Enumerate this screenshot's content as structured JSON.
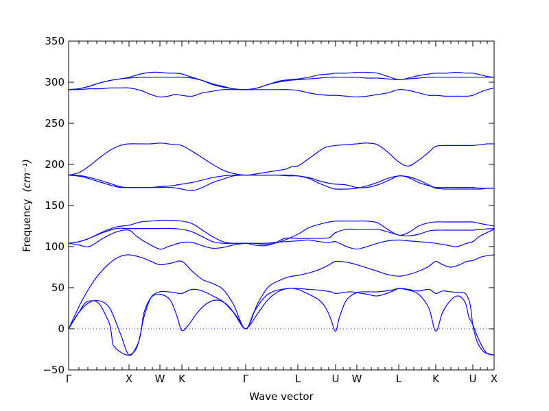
{
  "chart_data": {
    "type": "line",
    "xlabel": "Wave vector",
    "ylabel": "Frequency",
    "ylabel_unit": "(cm⁻¹)",
    "ylim": [
      -50,
      350
    ],
    "yticks": [
      -50,
      0,
      50,
      100,
      150,
      200,
      250,
      300,
      350
    ],
    "ytick_labels": [
      "−50",
      "0",
      "50",
      "100",
      "150",
      "200",
      "250",
      "300",
      "350"
    ],
    "xlim": [
      0,
      62
    ],
    "xticks": [
      {
        "x": 0,
        "label": "Γ"
      },
      {
        "x": 8.8,
        "label": "X"
      },
      {
        "x": 13.3,
        "label": "W"
      },
      {
        "x": 16.5,
        "label": "K"
      },
      {
        "x": 25.8,
        "label": "Γ"
      },
      {
        "x": 33.4,
        "label": "L"
      },
      {
        "x": 38.9,
        "label": "U"
      },
      {
        "x": 42.0,
        "label": "W"
      },
      {
        "x": 48.1,
        "label": "L"
      },
      {
        "x": 53.5,
        "label": "K"
      },
      {
        "x": 58.9,
        "label": "U"
      },
      {
        "x": 62.0,
        "label": "X"
      }
    ],
    "minor_xticks": [
      1.5,
      2.8,
      4.1,
      5.4,
      6.6,
      7.8,
      9.9,
      11.1,
      12.2,
      14.3,
      15.4,
      17.5,
      18.7,
      19.9,
      21.1,
      22.3,
      23.5,
      24.7,
      26.9,
      28.0,
      29.1,
      30.2,
      31.3,
      32.4,
      34.5,
      35.6,
      36.8,
      37.9,
      40.0,
      41.0,
      43.0,
      44.1,
      45.1,
      46.1,
      47.1,
      49.2,
      50.3,
      51.4,
      52.5,
      54.6,
      55.7,
      56.8,
      57.9,
      60.0,
      61.0
    ],
    "zero_line": {
      "y": 0,
      "style": "dotted",
      "color": "#0000ff"
    },
    "line_color": "#0000ff",
    "grid": false,
    "series": [
      {
        "x": [
          0,
          1.5,
          2.5,
          3.7,
          4.5,
          5.2,
          6.0,
          6.3,
          6.5,
          7.5,
          8.8,
          9.8,
          10.4,
          10.7,
          11.0,
          12.0,
          13.3,
          14.8,
          15.8,
          16.5,
          17.5,
          18.8,
          20.0,
          21.5,
          23.0,
          24.5,
          25.8,
          27.5,
          29.0,
          30.5,
          32.0,
          33.4,
          35.0,
          36.5,
          37.5,
          38.2,
          38.9,
          39.5,
          40.5,
          42.0,
          43.5,
          45.0,
          47.0,
          48.1,
          49.5,
          51.0,
          52.5,
          53.5,
          54.5,
          55.7,
          56.8,
          57.8,
          58.3,
          58.9,
          59.5,
          60.3,
          61.0,
          62.0
        ],
        "y": [
          0,
          20,
          32,
          34,
          30,
          20,
          5,
          -10,
          -20,
          -28,
          -32,
          -25,
          -10,
          5,
          20,
          38,
          42,
          35,
          15,
          -2,
          5,
          20,
          30,
          35,
          30,
          15,
          0,
          18,
          35,
          45,
          49,
          48,
          42,
          35,
          25,
          12,
          -3,
          15,
          35,
          44,
          45,
          45,
          47,
          49,
          47,
          42,
          25,
          -3,
          20,
          35,
          40,
          32,
          15,
          5,
          -8,
          -22,
          -30,
          -32
        ]
      },
      {
        "x": [
          0,
          1.5,
          3.0,
          4.5,
          6.0,
          7.5,
          8.8,
          10.0,
          10.5,
          11.0,
          12.0,
          13.3,
          14.5,
          15.5,
          16.5,
          18.0,
          19.5,
          21.0,
          22.5,
          24.0,
          25.8,
          27.0,
          28.5,
          30.0,
          32.0,
          33.4,
          35.0,
          36.5,
          37.5,
          38.2,
          38.9,
          40.0,
          41.0,
          42.0,
          43.5,
          45.0,
          47.0,
          48.1,
          49.5,
          51.0,
          52.5,
          53.5,
          54.5,
          55.7,
          56.8,
          57.8,
          58.5,
          58.9,
          59.5,
          60.5,
          62.0
        ],
        "y": [
          0,
          20,
          32,
          34,
          25,
          -5,
          -32,
          -20,
          -5,
          15,
          38,
          45,
          45,
          44,
          43,
          48,
          46,
          40,
          33,
          20,
          0,
          20,
          38,
          46,
          49,
          49,
          48,
          47,
          46,
          45,
          43,
          44,
          45,
          44,
          42,
          40,
          45,
          49,
          48,
          46,
          48,
          43,
          46,
          45,
          44,
          43,
          30,
          5,
          -15,
          -28,
          -32
        ]
      },
      {
        "x": [
          0,
          2.0,
          4.0,
          6.0,
          7.5,
          8.8,
          10.5,
          12.0,
          13.3,
          15.0,
          16.5,
          18.0,
          19.5,
          21.0,
          22.5,
          24.0,
          25.8,
          27.5,
          29.0,
          30.5,
          32.0,
          33.4,
          35.0,
          36.5,
          38.0,
          38.9,
          40.5,
          42.0,
          43.5,
          45.0,
          46.5,
          48.1,
          49.5,
          51.0,
          52.5,
          53.5,
          54.5,
          55.7,
          57.0,
          58.0,
          58.9,
          60.0,
          61.0,
          62.0
        ],
        "y": [
          0,
          35,
          62,
          80,
          88,
          90,
          87,
          82,
          78,
          80,
          82,
          70,
          60,
          55,
          48,
          30,
          0,
          30,
          50,
          58,
          63,
          65,
          68,
          72,
          78,
          82,
          81,
          78,
          74,
          70,
          66,
          64,
          66,
          70,
          76,
          82,
          78,
          75,
          78,
          82,
          83,
          87,
          89,
          90
        ]
      },
      {
        "x": [
          0,
          1.5,
          3.0,
          5.0,
          7.0,
          8.8,
          10.0,
          11.5,
          13.3,
          14.5,
          16.5,
          18.0,
          19.5,
          21.0,
          22.5,
          24.0,
          25.8,
          27.0,
          28.5,
          30.0,
          31.5,
          33.4,
          35.0,
          36.5,
          38.0,
          38.9,
          40.5,
          42.0,
          43.5,
          45.0,
          46.5,
          48.1,
          49.5,
          51.0,
          52.5,
          53.5,
          55.0,
          56.5,
          58.0,
          58.9,
          60.0,
          62.0
        ],
        "y": [
          104,
          102,
          100,
          110,
          118,
          120,
          112,
          104,
          97,
          100,
          105,
          105,
          101,
          98,
          99,
          102,
          104,
          104,
          104,
          105,
          106,
          107,
          108,
          106,
          105,
          106,
          100,
          97,
          100,
          104,
          107,
          108,
          107,
          106,
          105,
          104,
          102,
          100,
          104,
          106,
          113,
          121
        ]
      },
      {
        "x": [
          0,
          1.5,
          3.0,
          5.0,
          7.0,
          8.8,
          10.5,
          12.0,
          13.3,
          15.0,
          16.5,
          18.0,
          19.5,
          21.0,
          22.5,
          24.0,
          25.8,
          27.0,
          28.5,
          30.0,
          31.5,
          33.4,
          35.0,
          36.5,
          38.0,
          38.9,
          40.5,
          42.0,
          43.5,
          45.0,
          46.5,
          48.1,
          49.5,
          51.0,
          52.5,
          53.5,
          55.0,
          56.5,
          58.0,
          58.9,
          60.0,
          62.0
        ],
        "y": [
          104,
          106,
          110,
          117,
          122,
          122,
          122,
          122,
          122,
          122,
          121,
          118,
          112,
          106,
          104,
          104,
          104,
          102,
          101,
          104,
          110,
          110,
          110,
          110,
          111,
          117,
          121,
          121,
          121,
          121,
          118,
          114,
          113,
          115,
          119,
          120,
          120,
          120,
          120,
          120,
          121,
          122
        ]
      },
      {
        "x": [
          0,
          1.5,
          3.0,
          5.0,
          7.0,
          8.8,
          10.5,
          12.0,
          13.3,
          15.0,
          16.5,
          18.0,
          19.5,
          21.0,
          22.5,
          24.0,
          25.8,
          27.0,
          28.5,
          30.0,
          31.5,
          33.4,
          35.0,
          36.5,
          38.0,
          38.9,
          40.5,
          42.0,
          43.5,
          45.0,
          46.5,
          48.1,
          49.5,
          51.0,
          52.5,
          53.5,
          55.0,
          56.5,
          58.0,
          58.9,
          60.0,
          62.0
        ],
        "y": [
          104,
          106,
          110,
          118,
          124,
          126,
          130,
          131,
          132,
          132,
          131,
          128,
          120,
          112,
          106,
          104,
          104,
          104,
          103,
          104,
          108,
          115,
          123,
          127,
          130,
          131,
          131,
          131,
          131,
          129,
          121,
          114,
          117,
          125,
          129,
          130,
          130,
          130,
          130,
          130,
          128,
          125
        ]
      },
      {
        "x": [
          0,
          2.0,
          4.0,
          6.0,
          7.5,
          8.8,
          10.5,
          12.0,
          13.3,
          15.0,
          16.5,
          18.0,
          19.5,
          21.0,
          22.5,
          24.0,
          25.8,
          27.5,
          29.0,
          30.5,
          32.0,
          33.4,
          35.0,
          36.5,
          38.0,
          38.9,
          40.5,
          42.0,
          43.5,
          45.0,
          46.5,
          48.1,
          49.5,
          51.0,
          52.5,
          53.5,
          55.0,
          56.5,
          58.0,
          58.9,
          60.0,
          61.0,
          62.0
        ],
        "y": [
          187,
          185,
          180,
          175,
          172,
          172,
          172,
          172,
          172,
          172,
          170,
          168,
          172,
          178,
          182,
          186,
          187,
          187,
          187,
          187,
          186,
          186,
          184,
          180,
          177,
          176,
          175,
          172,
          172,
          175,
          180,
          186,
          184,
          178,
          174,
          172,
          172,
          172,
          172,
          172,
          171,
          171,
          171
        ]
      },
      {
        "x": [
          0,
          2.0,
          4.0,
          6.0,
          7.5,
          8.8,
          10.5,
          12.0,
          13.3,
          15.0,
          16.5,
          18.0,
          19.5,
          21.0,
          22.5,
          24.0,
          25.8,
          27.5,
          29.0,
          30.5,
          32.0,
          33.4,
          35.0,
          36.5,
          38.0,
          38.9,
          40.5,
          42.0,
          43.5,
          45.0,
          46.5,
          48.1,
          49.5,
          51.0,
          52.5,
          53.5,
          55.0,
          56.5,
          58.0,
          58.9,
          60.0,
          61.0,
          62.0
        ],
        "y": [
          187,
          186,
          182,
          177,
          173,
          172,
          172,
          172,
          173,
          174,
          176,
          178,
          181,
          184,
          186,
          187,
          187,
          187,
          187,
          187,
          187,
          186,
          183,
          177,
          172,
          170,
          170,
          171,
          174,
          178,
          183,
          186,
          185,
          181,
          175,
          171,
          170,
          170,
          170,
          170,
          170,
          171,
          171
        ]
      },
      {
        "x": [
          0,
          1.5,
          3.0,
          4.5,
          6.0,
          7.5,
          8.8,
          10.5,
          12.0,
          13.3,
          14.5,
          15.5,
          16.5,
          18.0,
          19.5,
          21.0,
          22.5,
          24.0,
          25.8,
          27.0,
          28.5,
          30.0,
          31.5,
          32.5,
          33.4,
          35.0,
          36.5,
          37.5,
          38.9,
          40.5,
          42.0,
          43.5,
          45.0,
          46.5,
          48.1,
          49.5,
          51.0,
          52.5,
          53.5,
          55.0,
          56.5,
          58.0,
          58.9,
          60.0,
          61.0,
          62.0
        ],
        "y": [
          187,
          190,
          198,
          208,
          217,
          223,
          225,
          225,
          225,
          226,
          225,
          224,
          223,
          216,
          208,
          200,
          193,
          189,
          187,
          188,
          190,
          192,
          194,
          197,
          198,
          207,
          216,
          221,
          223,
          224,
          225,
          226,
          224,
          215,
          203,
          198,
          205,
          215,
          222,
          223,
          223,
          223,
          223,
          224,
          225,
          225
        ]
      },
      {
        "x": [
          0,
          1.5,
          3.0,
          4.5,
          6.0,
          7.5,
          8.8,
          10.5,
          12.0,
          13.3,
          14.5,
          15.5,
          16.5,
          18.0,
          19.5,
          21.0,
          22.5,
          24.0,
          25.8,
          27.5,
          29.0,
          30.5,
          32.0,
          33.4,
          35.0,
          36.5,
          38.0,
          38.9,
          40.5,
          42.0,
          43.5,
          45.0,
          46.5,
          48.1,
          49.5,
          51.0,
          52.5,
          53.5,
          55.0,
          56.5,
          58.0,
          58.9,
          60.0,
          61.0,
          62.0
        ],
        "y": [
          291,
          291,
          292,
          292,
          293,
          293,
          293,
          290,
          285,
          282,
          283,
          285,
          284,
          283,
          287,
          289,
          291,
          291,
          291,
          291,
          291,
          291,
          291,
          290,
          287,
          285,
          284,
          284,
          283,
          282,
          283,
          285,
          287,
          291,
          290,
          287,
          284,
          284,
          283,
          283,
          283,
          284,
          288,
          291,
          293
        ]
      },
      {
        "x": [
          0,
          1.5,
          3.0,
          4.5,
          6.0,
          7.5,
          8.8,
          10.5,
          12.0,
          13.3,
          14.5,
          15.5,
          16.5,
          18.0,
          19.5,
          21.0,
          22.5,
          24.0,
          25.8,
          27.5,
          29.0,
          30.5,
          32.0,
          33.4,
          35.0,
          36.5,
          38.0,
          38.9,
          40.5,
          42.0,
          43.5,
          45.0,
          46.5,
          48.1,
          49.5,
          51.0,
          52.5,
          53.5,
          55.0,
          56.5,
          58.0,
          58.9,
          60.0,
          61.0,
          62.0
        ],
        "y": [
          291,
          292,
          295,
          299,
          302,
          304,
          305,
          306,
          306,
          306,
          306,
          306,
          306,
          305,
          302,
          298,
          295,
          292,
          291,
          293,
          297,
          300,
          302,
          303,
          304,
          305,
          306,
          306,
          306,
          306,
          305,
          305,
          304,
          303,
          304,
          305,
          306,
          306,
          306,
          306,
          306,
          306,
          306,
          306,
          306
        ]
      },
      {
        "x": [
          0,
          1.5,
          3.0,
          4.5,
          6.0,
          7.5,
          8.8,
          10.5,
          12.0,
          13.3,
          14.5,
          15.5,
          16.5,
          18.0,
          19.5,
          21.0,
          22.5,
          24.0,
          25.8,
          27.5,
          29.0,
          30.5,
          32.0,
          33.4,
          35.0,
          36.5,
          38.0,
          38.9,
          40.5,
          42.0,
          43.5,
          45.0,
          46.5,
          48.1,
          49.5,
          51.0,
          52.5,
          53.5,
          55.0,
          56.5,
          58.0,
          58.9,
          60.0,
          61.0,
          62.0
        ],
        "y": [
          291,
          292,
          295,
          299,
          302,
          304,
          306,
          310,
          312,
          312,
          311,
          311,
          310,
          306,
          302,
          297,
          294,
          292,
          291,
          293,
          297,
          301,
          303,
          304,
          306,
          309,
          310,
          311,
          311,
          312,
          312,
          311,
          307,
          303,
          305,
          308,
          310,
          311,
          311,
          312,
          311,
          311,
          309,
          307,
          306
        ]
      }
    ]
  }
}
